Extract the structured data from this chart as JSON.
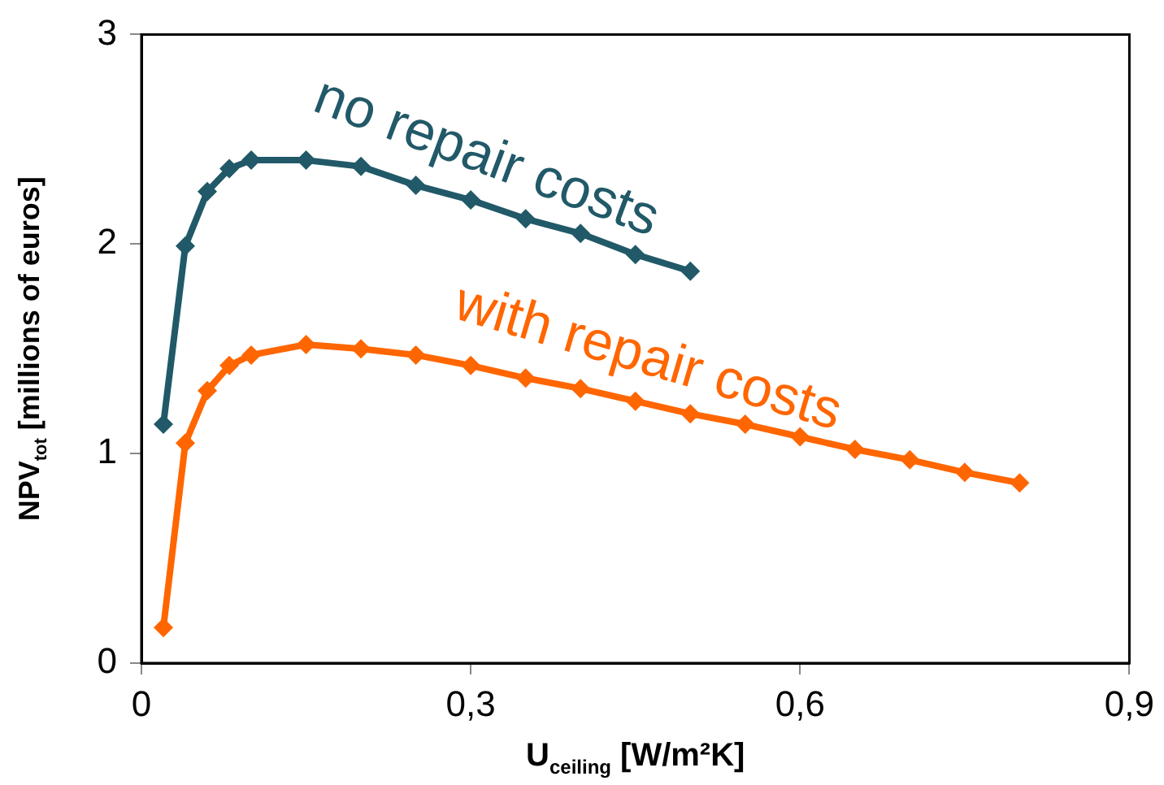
{
  "chart_data": {
    "type": "line",
    "xlabel": "U$_{ceiling}$ [W/m²K]",
    "ylabel": "NPV$_{tot}$ [millions of euros]",
    "xlim": [
      0,
      0.9
    ],
    "xticks": [
      0,
      {
        "value": 0.3,
        "label": "0,3"
      },
      {
        "value": 0.6,
        "label": "0,6"
      },
      {
        "value": 0.9,
        "label": "0,9"
      }
    ],
    "ylim": [
      0,
      3
    ],
    "yticks": [
      0,
      1,
      2,
      3
    ],
    "grid": false,
    "legend": false,
    "marker": "diamond",
    "line_style": "solid",
    "series": [
      {
        "name": "no repair costs",
        "color": "#215968",
        "x": [
          0.02,
          0.04,
          0.06,
          0.08,
          0.1,
          0.15,
          0.2,
          0.25,
          0.3,
          0.35,
          0.4,
          0.45,
          0.5
        ],
        "values": [
          1.14,
          1.99,
          2.25,
          2.36,
          2.4,
          2.4,
          2.37,
          2.28,
          2.21,
          2.12,
          2.05,
          1.95,
          1.87
        ]
      },
      {
        "name": "with repair costs",
        "color": "#ff6600",
        "x": [
          0.02,
          0.04,
          0.06,
          0.08,
          0.1,
          0.15,
          0.2,
          0.25,
          0.3,
          0.35,
          0.4,
          0.45,
          0.5,
          0.55,
          0.6,
          0.65,
          0.7,
          0.75,
          0.8
        ],
        "values": [
          0.17,
          1.05,
          1.3,
          1.42,
          1.47,
          1.52,
          1.5,
          1.47,
          1.42,
          1.36,
          1.31,
          1.25,
          1.19,
          1.14,
          1.08,
          1.02,
          0.97,
          0.91,
          0.86
        ]
      }
    ]
  }
}
